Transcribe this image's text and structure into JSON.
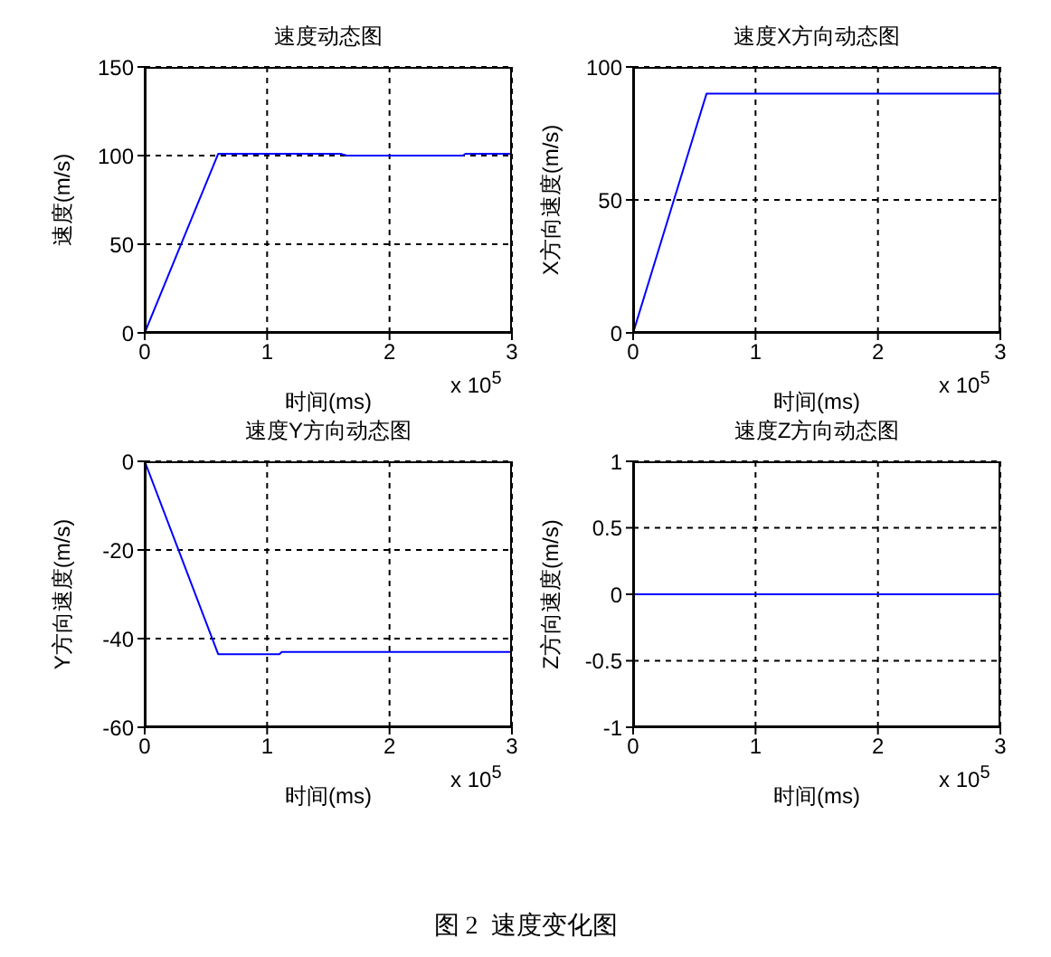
{
  "chart_data": [
    {
      "type": "line",
      "title": "速度动态图",
      "xlabel": "时间(ms)",
      "ylabel": "速度(m/s)",
      "x": [
        0,
        0.6,
        1.6,
        1.65,
        2.6,
        2.62,
        3
      ],
      "series": [
        {
          "color": "#0000ff",
          "values": [
            0,
            101,
            101,
            100,
            100,
            101,
            101
          ]
        }
      ],
      "xlim": [
        0,
        3
      ],
      "xticks": [
        0,
        1,
        2,
        3
      ],
      "ylim": [
        0,
        150
      ],
      "yticks": [
        0,
        50,
        100,
        150
      ],
      "grid": true,
      "marker": "none",
      "line_style": "solid",
      "annotations": [
        "x 10$^{5}$"
      ]
    },
    {
      "type": "line",
      "title": "速度X方向动态图",
      "xlabel": "时间(ms)",
      "ylabel": "X方向速度(m/s)",
      "x": [
        0,
        0.6,
        3
      ],
      "series": [
        {
          "color": "#0000ff",
          "values": [
            0,
            90,
            90
          ]
        }
      ],
      "xlim": [
        0,
        3
      ],
      "xticks": [
        0,
        1,
        2,
        3
      ],
      "ylim": [
        0,
        100
      ],
      "yticks": [
        0,
        50,
        100
      ],
      "grid": true,
      "marker": "none",
      "line_style": "solid",
      "annotations": [
        "x 10$^{5}$"
      ]
    },
    {
      "type": "line",
      "title": "速度Y方向动态图",
      "xlabel": "时间(ms)",
      "ylabel": "Y方向速度(m/s)",
      "x": [
        0,
        0.6,
        1.1,
        1.12,
        3
      ],
      "series": [
        {
          "color": "#0000ff",
          "values": [
            0,
            -43.5,
            -43.5,
            -43,
            -43
          ]
        }
      ],
      "xlim": [
        0,
        3
      ],
      "xticks": [
        0,
        1,
        2,
        3
      ],
      "ylim": [
        -60,
        0
      ],
      "yticks": [
        -60,
        -40,
        -20,
        0
      ],
      "grid": true,
      "marker": "none",
      "line_style": "solid",
      "annotations": [
        "x 10$^{5}$"
      ]
    },
    {
      "type": "line",
      "title": "速度Z方向动态图",
      "xlabel": "时间(ms)",
      "ylabel": "Z方向速度(m/s)",
      "x": [
        0,
        3
      ],
      "series": [
        {
          "color": "#0000ff",
          "values": [
            0,
            0
          ]
        }
      ],
      "xlim": [
        0,
        3
      ],
      "xticks": [
        0,
        1,
        2,
        3
      ],
      "ylim": [
        -1,
        1
      ],
      "yticks": [
        -1,
        -0.5,
        0,
        0.5,
        1
      ],
      "grid": true,
      "marker": "none",
      "line_style": "solid",
      "annotations": [
        "x 10$^{5}$",
        "图 2  速度变化图"
      ]
    }
  ]
}
